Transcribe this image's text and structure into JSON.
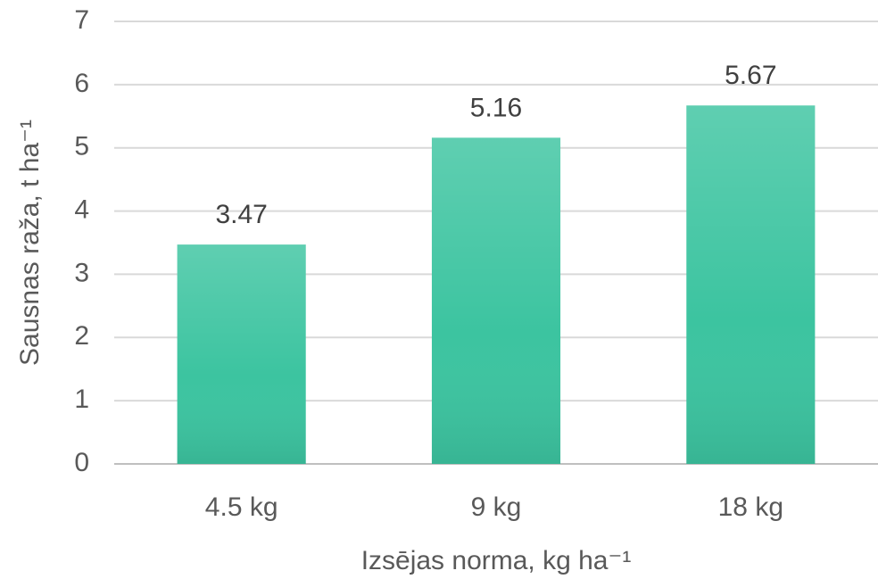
{
  "chart_data": {
    "type": "bar",
    "categories": [
      "4.5 kg",
      "9 kg",
      "18 kg"
    ],
    "values": [
      3.47,
      5.16,
      5.67
    ],
    "color": "#3cc4a0",
    "xlabel": "Izsējas norma, kg ha⁻¹",
    "ylabel": "Sausnas raža, t ha⁻¹",
    "ylim": [
      0,
      7
    ],
    "yticks": [
      0,
      1,
      2,
      3,
      4,
      5,
      6,
      7
    ],
    "grid": true
  }
}
